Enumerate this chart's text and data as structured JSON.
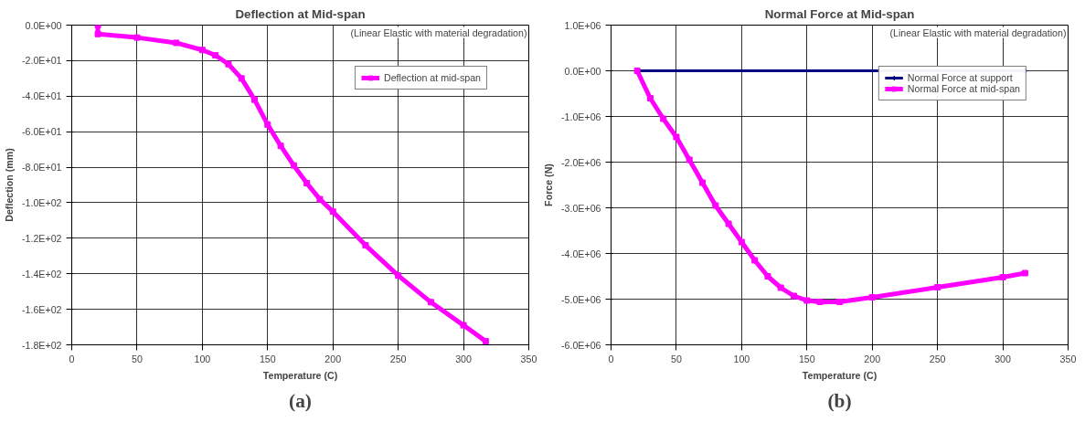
{
  "chart_data": [
    {
      "type": "line",
      "title": "Deflection at Mid-span",
      "xlabel": "Temperature (C)",
      "ylabel": "Deflection (mm)",
      "annotations": [
        "(Linear Elastic with material degradation)",
        "(a)"
      ],
      "xlim": [
        0,
        350
      ],
      "xticks": [
        0,
        50,
        100,
        150,
        200,
        250,
        300,
        350
      ],
      "ylim": [
        -180,
        0
      ],
      "yticks": [
        {
          "value": 0,
          "label": "0.0E+00"
        },
        {
          "value": -20,
          "label": "-2.0E+01"
        },
        {
          "value": -40,
          "label": "-4.0E+01"
        },
        {
          "value": -60,
          "label": "-6.0E+01"
        },
        {
          "value": -80,
          "label": "-8.0E+01"
        },
        {
          "value": -100,
          "label": "-1.0E+02"
        },
        {
          "value": -120,
          "label": "-1.2E+02"
        },
        {
          "value": -140,
          "label": "-1.4E+02"
        },
        {
          "value": -160,
          "label": "-1.6E+02"
        },
        {
          "value": -180,
          "label": "-1.8E+02"
        }
      ],
      "grid": true,
      "legend": "top right",
      "marker": "square",
      "series": [
        {
          "name": "Deflection at mid-span",
          "color": "#ff00ff",
          "x": [
            20,
            20,
            50,
            80,
            100,
            110,
            120,
            130,
            140,
            150,
            160,
            170,
            180,
            190,
            200,
            225,
            250,
            275,
            300,
            317
          ],
          "values": [
            0,
            -5,
            -7,
            -10,
            -14,
            -17,
            -22,
            -30,
            -42,
            -56,
            -68,
            -79,
            -89,
            -98,
            -105,
            -124,
            -141,
            -156,
            -169,
            -178
          ]
        }
      ]
    },
    {
      "type": "line",
      "title": "Normal Force at Mid-span",
      "xlabel": "Temperature (C)",
      "ylabel": "Force (N)",
      "annotations": [
        "(Linear Elastic with material degradation)",
        "(b)"
      ],
      "xlim": [
        0,
        350
      ],
      "xticks": [
        0,
        50,
        100,
        150,
        200,
        250,
        300,
        350
      ],
      "ylim": [
        -6000000,
        1000000
      ],
      "yticks": [
        {
          "value": 1000000,
          "label": "1.0E+06"
        },
        {
          "value": 0,
          "label": "0.0E+00"
        },
        {
          "value": -1000000,
          "label": "-1.0E+06"
        },
        {
          "value": -2000000,
          "label": "-2.0E+06"
        },
        {
          "value": -3000000,
          "label": "-3.0E+06"
        },
        {
          "value": -4000000,
          "label": "-4.0E+06"
        },
        {
          "value": -5000000,
          "label": "-5.0E+06"
        },
        {
          "value": -6000000,
          "label": "-6.0E+06"
        }
      ],
      "grid": true,
      "legend": "top right",
      "series": [
        {
          "name": "Normal Force at support",
          "color": "#000080",
          "marker": "diamond",
          "x": [
            20,
            317
          ],
          "values": [
            0,
            0
          ]
        },
        {
          "name": "Normal Force at mid-span",
          "color": "#ff00ff",
          "marker": "square",
          "x": [
            20,
            30,
            40,
            50,
            60,
            70,
            80,
            90,
            100,
            110,
            120,
            130,
            140,
            150,
            160,
            175,
            200,
            250,
            300,
            317
          ],
          "values": [
            0,
            -600000,
            -1050000,
            -1450000,
            -1950000,
            -2450000,
            -2950000,
            -3350000,
            -3750000,
            -4150000,
            -4500000,
            -4750000,
            -4930000,
            -5030000,
            -5060000,
            -5060000,
            -4960000,
            -4740000,
            -4520000,
            -4430000
          ]
        }
      ]
    }
  ]
}
